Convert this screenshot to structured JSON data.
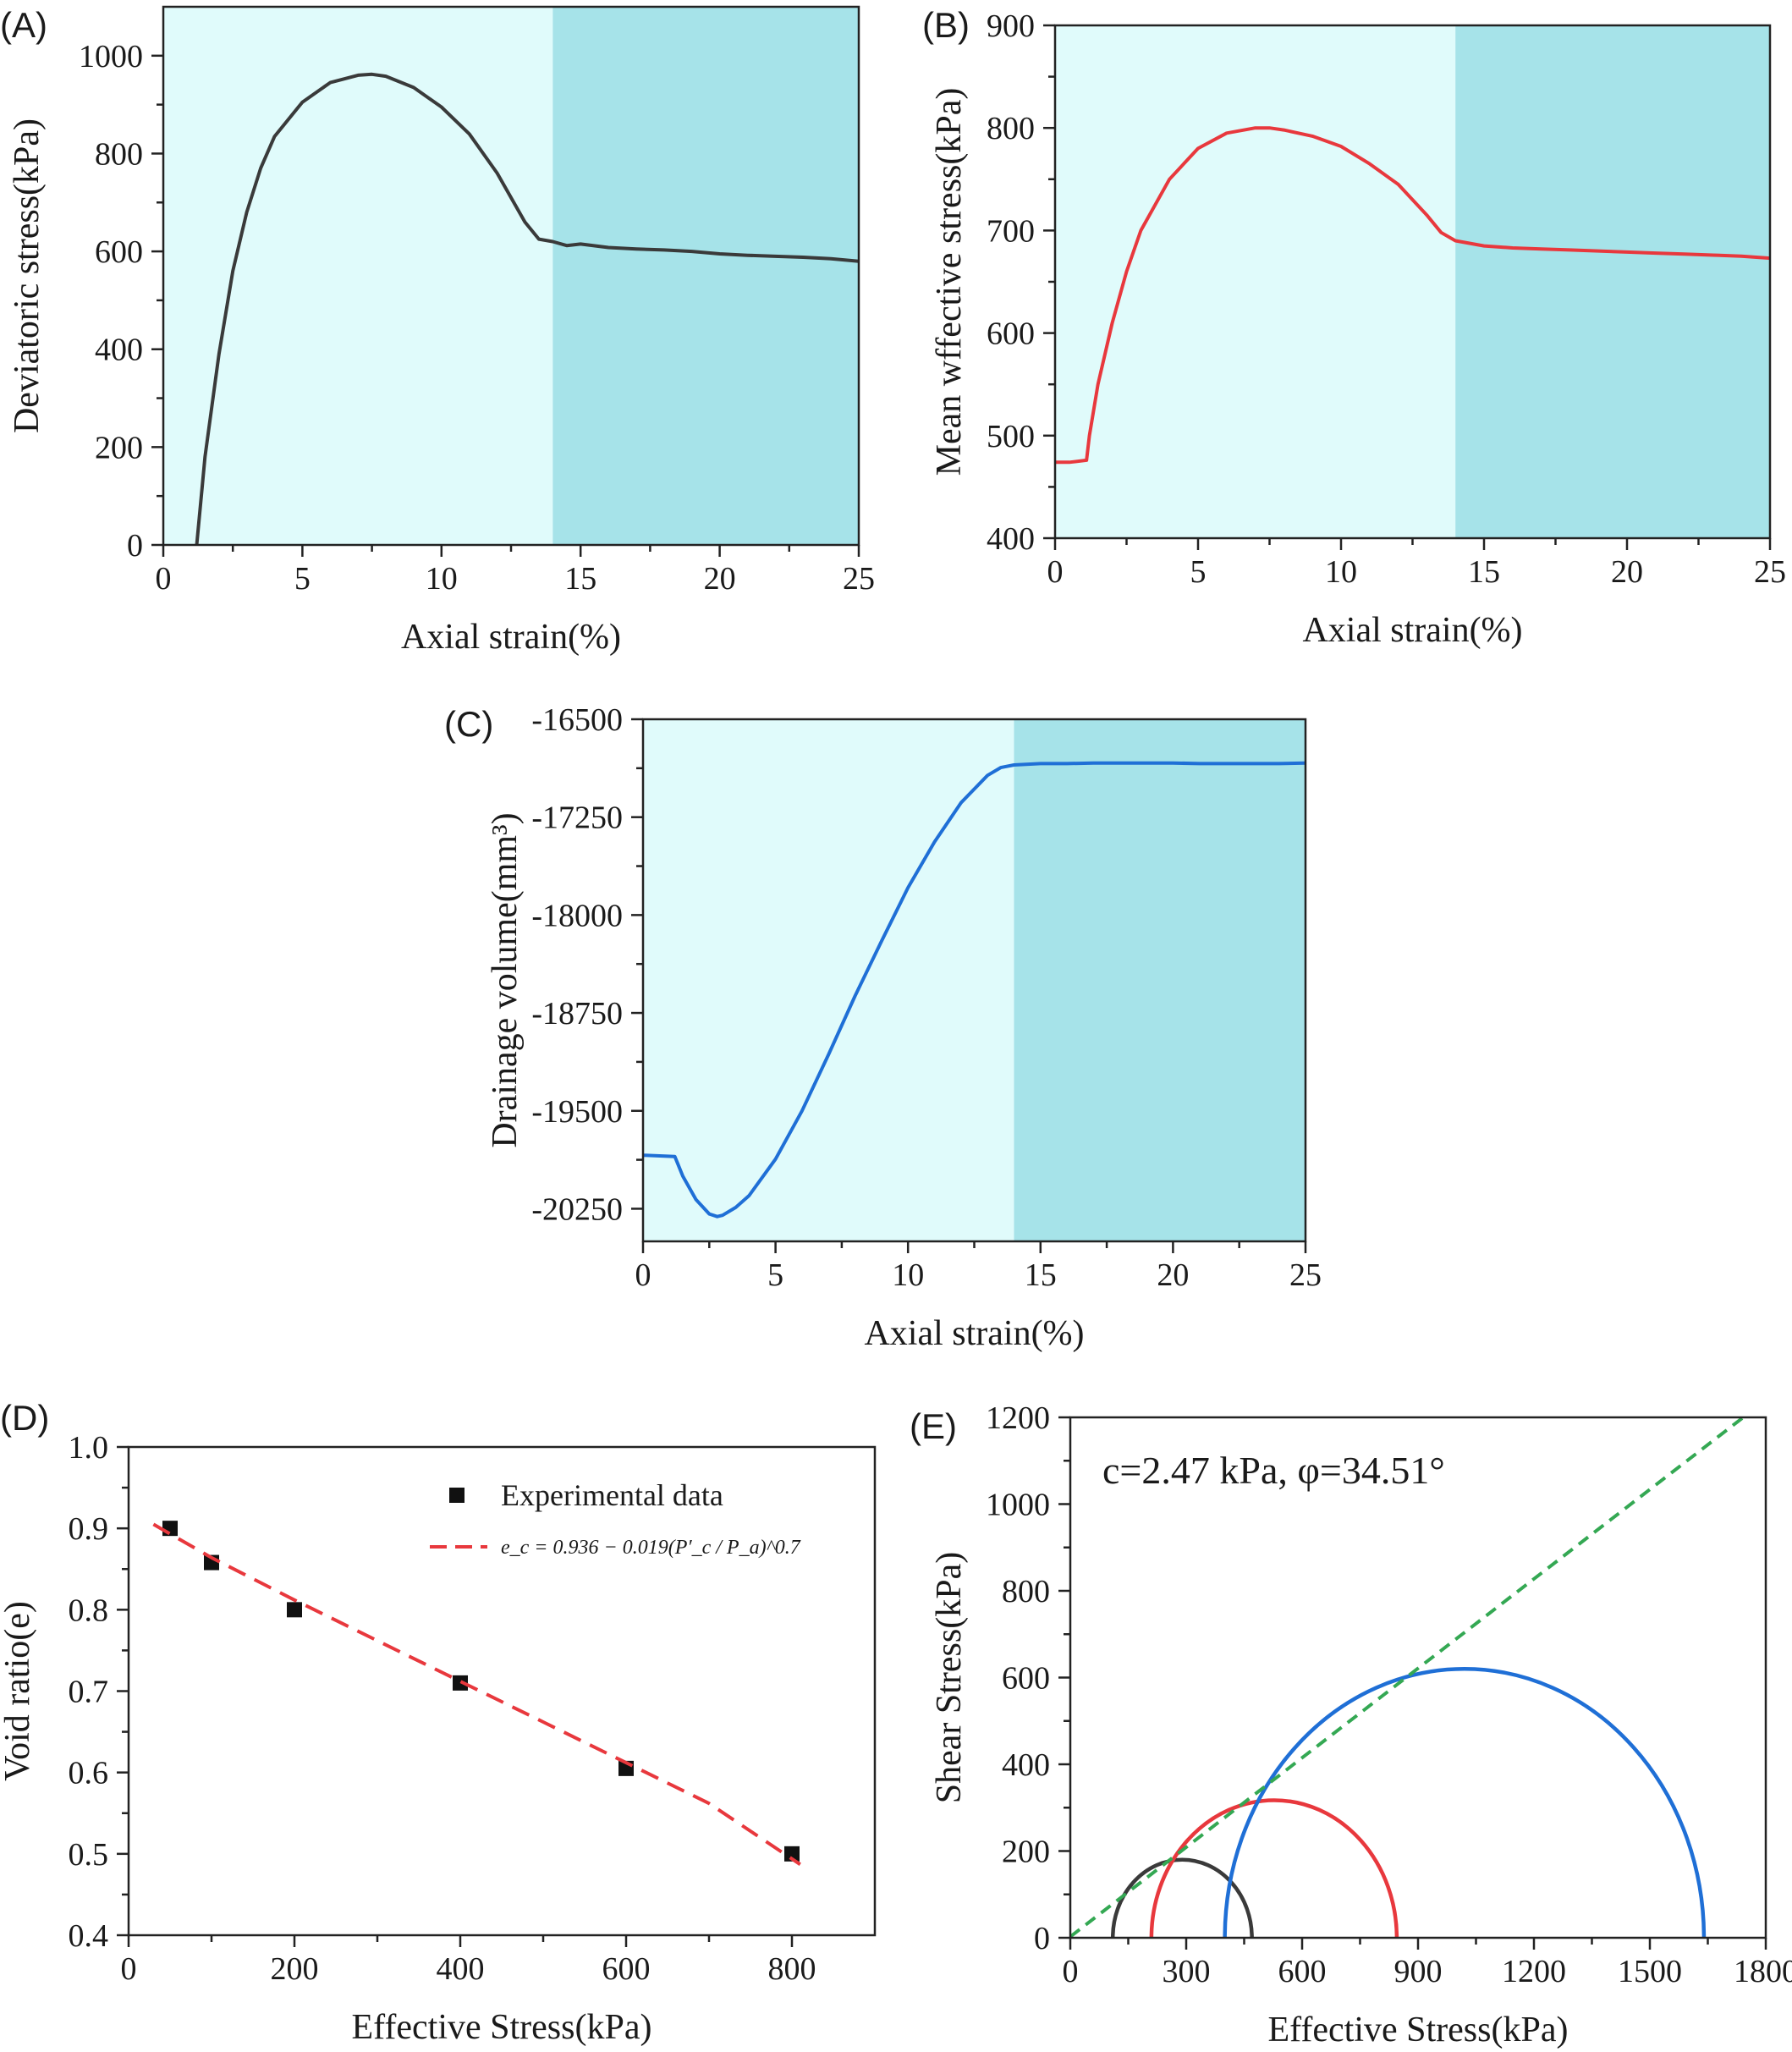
{
  "colors": {
    "region_light": "#e0fbfb",
    "region_dark": "#a6e3e9",
    "black_series": "#3a3a3a",
    "red_series": "#e8383d",
    "blue_series": "#1f6fd6",
    "green_line": "#34a853",
    "fit_line": "#e8383d"
  },
  "chart_data": [
    {
      "id": "A",
      "panel_label": "(A)",
      "type": "line",
      "xlabel": "Axial strain(%)",
      "ylabel": "Deviatoric stress(kPa)",
      "xlim": [
        0,
        25
      ],
      "ylim": [
        0,
        1100
      ],
      "xticks": [
        0,
        5,
        10,
        15,
        20,
        25
      ],
      "yticks": [
        0,
        200,
        400,
        600,
        800,
        1000
      ],
      "shaded_regions": [
        {
          "from": 0,
          "to": 14,
          "tone": "light"
        },
        {
          "from": 14,
          "to": 25,
          "tone": "dark"
        }
      ],
      "series": [
        {
          "color": "black_series",
          "x": [
            1.2,
            1.5,
            2,
            2.5,
            3,
            3.5,
            4,
            5,
            6,
            7,
            7.5,
            8,
            9,
            10,
            11,
            12,
            13,
            13.5,
            14,
            14.5,
            15,
            16,
            17,
            18,
            19,
            20,
            21,
            22,
            23,
            24,
            25
          ],
          "y": [
            0,
            180,
            390,
            560,
            680,
            770,
            835,
            905,
            945,
            960,
            962,
            958,
            935,
            895,
            840,
            760,
            660,
            625,
            620,
            612,
            615,
            608,
            605,
            603,
            600,
            595,
            592,
            590,
            588,
            585,
            580
          ]
        }
      ]
    },
    {
      "id": "B",
      "panel_label": "(B)",
      "type": "line",
      "xlabel": "Axial strain(%)",
      "ylabel": "Mean wffective stress(kPa)",
      "xlim": [
        0,
        25
      ],
      "ylim": [
        400,
        900
      ],
      "xticks": [
        0,
        5,
        10,
        15,
        20,
        25
      ],
      "yticks": [
        400,
        500,
        600,
        700,
        800,
        900
      ],
      "shaded_regions": [
        {
          "from": 0,
          "to": 14,
          "tone": "light"
        },
        {
          "from": 14,
          "to": 25,
          "tone": "dark"
        }
      ],
      "series": [
        {
          "color": "red_series",
          "x": [
            0,
            0.5,
            1.1,
            1.2,
            1.5,
            2,
            2.5,
            3,
            4,
            5,
            6,
            7,
            7.5,
            8,
            9,
            10,
            11,
            12,
            13,
            13.5,
            14,
            15,
            16,
            17,
            18,
            19,
            20,
            21,
            22,
            23,
            24,
            25
          ],
          "y": [
            474,
            474,
            476,
            500,
            550,
            610,
            660,
            700,
            750,
            780,
            795,
            800,
            800,
            798,
            792,
            782,
            765,
            745,
            715,
            698,
            690,
            685,
            683,
            682,
            681,
            680,
            679,
            678,
            677,
            676,
            675,
            673
          ]
        }
      ]
    },
    {
      "id": "C",
      "panel_label": "(C)",
      "type": "line",
      "xlabel": "Axial strain(%)",
      "ylabel": "Drainage volume(mm³)",
      "xlim": [
        0,
        25
      ],
      "ylim": [
        -20500,
        -16500
      ],
      "xticks": [
        0,
        5,
        10,
        15,
        20,
        25
      ],
      "yticks": [
        -20250,
        -19500,
        -18750,
        -18000,
        -17250,
        -16500
      ],
      "shaded_regions": [
        {
          "from": 0,
          "to": 14,
          "tone": "light"
        },
        {
          "from": 14,
          "to": 25,
          "tone": "dark"
        }
      ],
      "series": [
        {
          "color": "blue_series",
          "x": [
            0,
            1.2,
            1.5,
            2,
            2.5,
            2.8,
            3,
            3.5,
            4,
            5,
            6,
            7,
            8,
            9,
            10,
            11,
            12,
            13,
            13.5,
            14,
            15,
            16,
            17,
            18,
            19,
            20,
            21,
            22,
            23,
            24,
            25
          ],
          "y": [
            -19840,
            -19850,
            -20000,
            -20180,
            -20290,
            -20310,
            -20300,
            -20240,
            -20150,
            -19870,
            -19500,
            -19070,
            -18620,
            -18200,
            -17790,
            -17440,
            -17140,
            -16930,
            -16870,
            -16850,
            -16840,
            -16840,
            -16835,
            -16835,
            -16835,
            -16835,
            -16840,
            -16840,
            -16840,
            -16840,
            -16835
          ]
        }
      ]
    },
    {
      "id": "D",
      "panel_label": "(D)",
      "type": "scatter",
      "xlabel": "Effective Stress(kPa)",
      "ylabel": "Void ratio(e)",
      "xlim": [
        0,
        900
      ],
      "ylim": [
        0.4,
        1.0
      ],
      "xticks": [
        0,
        200,
        400,
        600,
        800
      ],
      "yticks": [
        0.4,
        0.5,
        0.6,
        0.7,
        0.8,
        0.9,
        1.0
      ],
      "tick_formats": {
        "y": "1dp"
      },
      "series": [
        {
          "name": "Experimental data",
          "type": "scatter",
          "color": "#111111",
          "x": [
            50,
            100,
            200,
            400,
            600,
            800
          ],
          "y": [
            0.9,
            0.858,
            0.8,
            0.71,
            0.605,
            0.5
          ]
        },
        {
          "name": "e_c = 0.936 − 0.019(P'_c / P_a)^0.7",
          "type": "dashed-line",
          "color": "fit_line",
          "x": [
            30,
            100,
            200,
            300,
            400,
            500,
            600,
            700,
            810
          ],
          "y": [
            0.905,
            0.864,
            0.812,
            0.762,
            0.712,
            0.662,
            0.612,
            0.562,
            0.487
          ]
        }
      ],
      "legend": {
        "placement": "top-right",
        "entries": [
          "Experimental data",
          "e_c = 0.936 − 0.019(P′_c / P_a)^0.7"
        ]
      }
    },
    {
      "id": "E",
      "panel_label": "(E)",
      "type": "line",
      "xlabel": "Effective Stress(kPa)",
      "ylabel": "Shear Stress(kPa)",
      "xlim": [
        0,
        1800
      ],
      "ylim": [
        0,
        1200
      ],
      "xticks": [
        0,
        300,
        600,
        900,
        1200,
        1500,
        1800
      ],
      "yticks": [
        0,
        200,
        400,
        600,
        800,
        1000,
        1200
      ],
      "annotation": "c=2.47 kPa, φ=34.51°",
      "mohr_circles": [
        {
          "color": "black_series",
          "sigma3": 110,
          "sigma1": 470
        },
        {
          "color": "red_series",
          "sigma3": 210,
          "sigma1": 845
        },
        {
          "color": "blue_series",
          "sigma3": 400,
          "sigma1": 1640
        }
      ],
      "envelope": {
        "color": "green_line",
        "c": 2.47,
        "phi_deg": 34.51
      }
    }
  ]
}
